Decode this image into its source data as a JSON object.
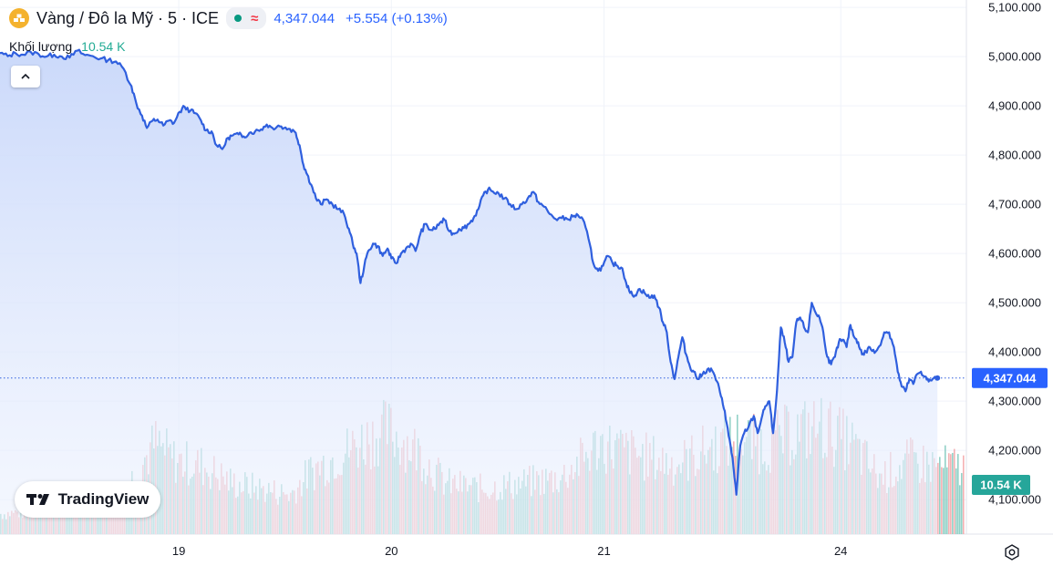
{
  "header": {
    "title": "Vàng / Đô la Mỹ · 5 · ICE",
    "status_symbol": "≈",
    "price": "4,347.044",
    "change": "+5.554 (+0.13%)",
    "icon": "gold-bars-icon",
    "colors": {
      "price": "#2962ff",
      "status_dot": "#089981",
      "symbol": "#f23645"
    }
  },
  "volume_legend": {
    "label": "Khối lượng",
    "value": "10.54 K"
  },
  "logo": {
    "text": "TradingView"
  },
  "chart_data": {
    "type": "line",
    "title": "Vàng / Đô la Mỹ · 5 · ICE",
    "line_color": "#2f5fde",
    "area_fill": "#dce6fb",
    "y_axis": {
      "position": "right",
      "ticks": [
        "5,100.000",
        "5,000.000",
        "4,900.000",
        "4,800.000",
        "4,700.000",
        "4,600.000",
        "4,500.000",
        "4,400.000",
        "4,300.000",
        "4,200.000",
        "4,100.000"
      ],
      "ylim": [
        4030,
        5115
      ]
    },
    "x_axis": {
      "ticks": [
        "19",
        "20",
        "21",
        "24"
      ],
      "tick_index": [
        0.185,
        0.405,
        0.625,
        0.87
      ]
    },
    "price_series": [
      [
        0.0,
        5007
      ],
      [
        0.008,
        5001
      ],
      [
        0.016,
        5007
      ],
      [
        0.024,
        5004
      ],
      [
        0.032,
        5009
      ],
      [
        0.04,
        5005
      ],
      [
        0.048,
        5000
      ],
      [
        0.056,
        5004
      ],
      [
        0.064,
        5000
      ],
      [
        0.072,
        4998
      ],
      [
        0.08,
        5012
      ],
      [
        0.088,
        5003
      ],
      [
        0.096,
        5001
      ],
      [
        0.104,
        4996
      ],
      [
        0.112,
        4993
      ],
      [
        0.12,
        4990
      ],
      [
        0.128,
        4975
      ],
      [
        0.136,
        4940
      ],
      [
        0.141,
        4905
      ],
      [
        0.147,
        4880
      ],
      [
        0.152,
        4855
      ],
      [
        0.158,
        4870
      ],
      [
        0.163,
        4872
      ],
      [
        0.169,
        4860
      ],
      [
        0.175,
        4870
      ],
      [
        0.18,
        4865
      ],
      [
        0.186,
        4888
      ],
      [
        0.191,
        4898
      ],
      [
        0.197,
        4890
      ],
      [
        0.202,
        4885
      ],
      [
        0.208,
        4870
      ],
      [
        0.213,
        4850
      ],
      [
        0.219,
        4848
      ],
      [
        0.224,
        4820
      ],
      [
        0.23,
        4812
      ],
      [
        0.236,
        4835
      ],
      [
        0.241,
        4840
      ],
      [
        0.247,
        4842
      ],
      [
        0.252,
        4838
      ],
      [
        0.258,
        4845
      ],
      [
        0.264,
        4848
      ],
      [
        0.27,
        4852
      ],
      [
        0.276,
        4862
      ],
      [
        0.282,
        4855
      ],
      [
        0.288,
        4860
      ],
      [
        0.294,
        4855
      ],
      [
        0.3,
        4853
      ],
      [
        0.306,
        4845
      ],
      [
        0.31,
        4820
      ],
      [
        0.314,
        4780
      ],
      [
        0.318,
        4760
      ],
      [
        0.322,
        4740
      ],
      [
        0.327,
        4712
      ],
      [
        0.332,
        4700
      ],
      [
        0.338,
        4710
      ],
      [
        0.344,
        4700
      ],
      [
        0.35,
        4690
      ],
      [
        0.356,
        4680
      ],
      [
        0.361,
        4650
      ],
      [
        0.365,
        4620
      ],
      [
        0.369,
        4600
      ],
      [
        0.373,
        4540
      ],
      [
        0.377,
        4575
      ],
      [
        0.381,
        4605
      ],
      [
        0.386,
        4620
      ],
      [
        0.391,
        4615
      ],
      [
        0.396,
        4595
      ],
      [
        0.401,
        4610
      ],
      [
        0.405,
        4590
      ],
      [
        0.41,
        4580
      ],
      [
        0.415,
        4600
      ],
      [
        0.42,
        4610
      ],
      [
        0.425,
        4620
      ],
      [
        0.43,
        4605
      ],
      [
        0.435,
        4640
      ],
      [
        0.44,
        4660
      ],
      [
        0.445,
        4648
      ],
      [
        0.45,
        4650
      ],
      [
        0.455,
        4662
      ],
      [
        0.46,
        4668
      ],
      [
        0.465,
        4645
      ],
      [
        0.47,
        4640
      ],
      [
        0.475,
        4650
      ],
      [
        0.48,
        4652
      ],
      [
        0.485,
        4660
      ],
      [
        0.49,
        4672
      ],
      [
        0.495,
        4690
      ],
      [
        0.5,
        4718
      ],
      [
        0.505,
        4730
      ],
      [
        0.51,
        4726
      ],
      [
        0.516,
        4722
      ],
      [
        0.522,
        4712
      ],
      [
        0.528,
        4700
      ],
      [
        0.534,
        4690
      ],
      [
        0.54,
        4700
      ],
      [
        0.546,
        4712
      ],
      [
        0.552,
        4725
      ],
      [
        0.557,
        4705
      ],
      [
        0.563,
        4695
      ],
      [
        0.569,
        4680
      ],
      [
        0.575,
        4670
      ],
      [
        0.581,
        4672
      ],
      [
        0.587,
        4670
      ],
      [
        0.593,
        4675
      ],
      [
        0.598,
        4678
      ],
      [
        0.603,
        4670
      ],
      [
        0.609,
        4630
      ],
      [
        0.614,
        4580
      ],
      [
        0.619,
        4565
      ],
      [
        0.624,
        4575
      ],
      [
        0.629,
        4595
      ],
      [
        0.634,
        4580
      ],
      [
        0.639,
        4575
      ],
      [
        0.644,
        4570
      ],
      [
        0.648,
        4540
      ],
      [
        0.652,
        4520
      ],
      [
        0.657,
        4515
      ],
      [
        0.662,
        4528
      ],
      [
        0.667,
        4520
      ],
      [
        0.672,
        4510
      ],
      [
        0.677,
        4515
      ],
      [
        0.682,
        4490
      ],
      [
        0.686,
        4460
      ],
      [
        0.69,
        4440
      ],
      [
        0.694,
        4380
      ],
      [
        0.698,
        4345
      ],
      [
        0.702,
        4390
      ],
      [
        0.706,
        4430
      ],
      [
        0.71,
        4395
      ],
      [
        0.714,
        4370
      ],
      [
        0.718,
        4360
      ],
      [
        0.722,
        4345
      ],
      [
        0.727,
        4355
      ],
      [
        0.732,
        4365
      ],
      [
        0.737,
        4362
      ],
      [
        0.742,
        4340
      ],
      [
        0.746,
        4310
      ],
      [
        0.75,
        4280
      ],
      [
        0.754,
        4230
      ],
      [
        0.758,
        4185
      ],
      [
        0.762,
        4110
      ],
      [
        0.766,
        4210
      ],
      [
        0.77,
        4235
      ],
      [
        0.775,
        4250
      ],
      [
        0.78,
        4270
      ],
      [
        0.784,
        4235
      ],
      [
        0.788,
        4265
      ],
      [
        0.792,
        4290
      ],
      [
        0.796,
        4300
      ],
      [
        0.8,
        4235
      ],
      [
        0.804,
        4320
      ],
      [
        0.808,
        4450
      ],
      [
        0.812,
        4420
      ],
      [
        0.816,
        4380
      ],
      [
        0.82,
        4390
      ],
      [
        0.824,
        4460
      ],
      [
        0.828,
        4470
      ],
      [
        0.832,
        4450
      ],
      [
        0.836,
        4440
      ],
      [
        0.84,
        4500
      ],
      [
        0.844,
        4480
      ],
      [
        0.848,
        4470
      ],
      [
        0.852,
        4440
      ],
      [
        0.856,
        4390
      ],
      [
        0.86,
        4375
      ],
      [
        0.864,
        4390
      ],
      [
        0.868,
        4420
      ],
      [
        0.872,
        4425
      ],
      [
        0.876,
        4410
      ],
      [
        0.88,
        4455
      ],
      [
        0.884,
        4430
      ],
      [
        0.888,
        4420
      ],
      [
        0.892,
        4395
      ],
      [
        0.896,
        4400
      ],
      [
        0.9,
        4410
      ],
      [
        0.905,
        4398
      ],
      [
        0.91,
        4412
      ],
      [
        0.915,
        4440
      ],
      [
        0.92,
        4440
      ],
      [
        0.925,
        4410
      ],
      [
        0.929,
        4360
      ],
      [
        0.933,
        4330
      ],
      [
        0.937,
        4320
      ],
      [
        0.941,
        4345
      ],
      [
        0.945,
        4335
      ],
      [
        0.949,
        4355
      ],
      [
        0.953,
        4360
      ],
      [
        0.957,
        4350
      ],
      [
        0.961,
        4340
      ],
      [
        0.965,
        4345
      ],
      [
        0.97,
        4347
      ]
    ],
    "volume": {
      "last_value": "10.54 K",
      "up_color": "#7fc9bd",
      "down_color": "#f3a3a6",
      "profile": [
        [
          0.0,
          0.18
        ],
        [
          0.12,
          0.25
        ],
        [
          0.14,
          0.55
        ],
        [
          0.16,
          0.8
        ],
        [
          0.18,
          0.65
        ],
        [
          0.21,
          0.6
        ],
        [
          0.24,
          0.45
        ],
        [
          0.27,
          0.4
        ],
        [
          0.3,
          0.35
        ],
        [
          0.32,
          0.55
        ],
        [
          0.35,
          0.7
        ],
        [
          0.38,
          0.85
        ],
        [
          0.4,
          0.92
        ],
        [
          0.43,
          0.75
        ],
        [
          0.46,
          0.45
        ],
        [
          0.5,
          0.4
        ],
        [
          0.54,
          0.45
        ],
        [
          0.58,
          0.5
        ],
        [
          0.62,
          0.8
        ],
        [
          0.66,
          0.7
        ],
        [
          0.7,
          0.62
        ],
        [
          0.73,
          0.75
        ],
        [
          0.76,
          0.85
        ],
        [
          0.79,
          0.78
        ],
        [
          0.82,
          0.9
        ],
        [
          0.85,
          0.95
        ],
        [
          0.88,
          0.8
        ],
        [
          0.91,
          0.5
        ],
        [
          0.94,
          0.65
        ],
        [
          0.97,
          0.6
        ]
      ]
    },
    "last_price_label": "4,347.044",
    "last_price_color": "#2962ff",
    "last_volume_label": "10.54 K",
    "last_volume_color": "#26a69a",
    "grid": true
  },
  "icons": {
    "collapse": "chevron-up-icon",
    "settings": "settings-icon",
    "logo": "tradingview-logo-icon"
  }
}
